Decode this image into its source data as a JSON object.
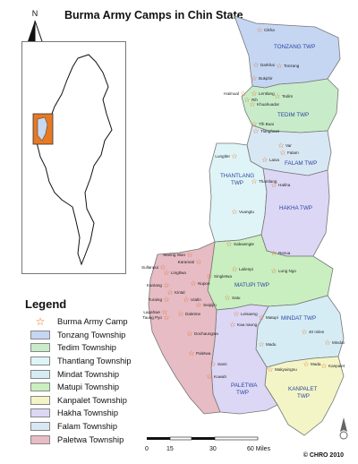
{
  "title": "Burma Army Camps in Chin State",
  "north_label": "N",
  "legend": {
    "title": "Legend",
    "camp_label": "Burma Army Camp",
    "items": [
      {
        "label": "Tonzang Township",
        "color": "#c5d6f3"
      },
      {
        "label": "Tedim  Township",
        "color": "#c8ecc9"
      },
      {
        "label": "Thantlang Township",
        "color": "#dff4f7"
      },
      {
        "label": "Mindat Township",
        "color": "#d5ecf4"
      },
      {
        "label": "Matupi Township",
        "color": "#c9eec0"
      },
      {
        "label": "Kanpalet Township",
        "color": "#f3f5c6"
      },
      {
        "label": "Hakha Township",
        "color": "#dcd7f5"
      },
      {
        "label": "Falam Township",
        "color": "#d8e7f4"
      },
      {
        "label": "Paletwa Township",
        "color": "#e7bcc4"
      }
    ]
  },
  "township_labels": {
    "tonzang": "TONZANG TWP",
    "tedim": "TEDIM TWP",
    "falam": "FALAM TWP",
    "thantlang_1": "THANTLANG",
    "thantlang_2": "TWP",
    "hakha": "HAKHA TWP",
    "matupi": "MATUPI TWP",
    "mindat": "MINDAT TWP",
    "kanpalet_1": "KANPALET",
    "kanpalet_2": "TWP",
    "paletwa_1": "PALETWA",
    "paletwa_2": "TWP"
  },
  "camps": [
    {
      "name": "Cikha"
    },
    {
      "name": "Darkhai"
    },
    {
      "name": "Tonzang"
    },
    {
      "name": "Bukphir"
    },
    {
      "name": "Haimual"
    },
    {
      "name": "Lentlang"
    },
    {
      "name": "Tedim"
    },
    {
      "name": "Rih"
    },
    {
      "name": "Khuahuadar"
    },
    {
      "name": "Tlh Buai"
    },
    {
      "name": "Tlanghawi"
    },
    {
      "name": "Var"
    },
    {
      "name": "Falam"
    },
    {
      "name": "Laiva"
    },
    {
      "name": "Lungtler"
    },
    {
      "name": "Thantlang"
    },
    {
      "name": "Hakha"
    },
    {
      "name": "Vuangtu"
    },
    {
      "name": "Sabawngte"
    },
    {
      "name": "Rezua"
    },
    {
      "name": "Lailenpi"
    },
    {
      "name": "Lung Ngo"
    },
    {
      "name": "Maring Wan"
    },
    {
      "name": "Karamati"
    },
    {
      "name": "Sullanpui"
    },
    {
      "name": "Singletwa"
    },
    {
      "name": "Lingtlwa"
    },
    {
      "name": "Kantang"
    },
    {
      "name": "Nupoe"
    },
    {
      "name": "Kintal"
    },
    {
      "name": "Turaing"
    },
    {
      "name": "Utalin"
    },
    {
      "name": "Seipijin"
    },
    {
      "name": "Lapahwe"
    },
    {
      "name": "Daletme"
    },
    {
      "name": "Taung Pyo"
    },
    {
      "name": "Satu"
    },
    {
      "name": "Leisaeng"
    },
    {
      "name": "Kaa naung"
    },
    {
      "name": "Matupi"
    },
    {
      "name": "Dochaungwa"
    },
    {
      "name": "Madu"
    },
    {
      "name": "40 miles"
    },
    {
      "name": "Mindat"
    },
    {
      "name": "Paletwa"
    },
    {
      "name": "Sami"
    },
    {
      "name": "Makyaingnu"
    },
    {
      "name": "Mada"
    },
    {
      "name": "Kanpalet"
    },
    {
      "name": "Kuwah"
    }
  ],
  "scale_bar": {
    "ticks": [
      "0",
      "15",
      "30",
      "60 Miles"
    ]
  },
  "copyright": "© CHRO 2010"
}
